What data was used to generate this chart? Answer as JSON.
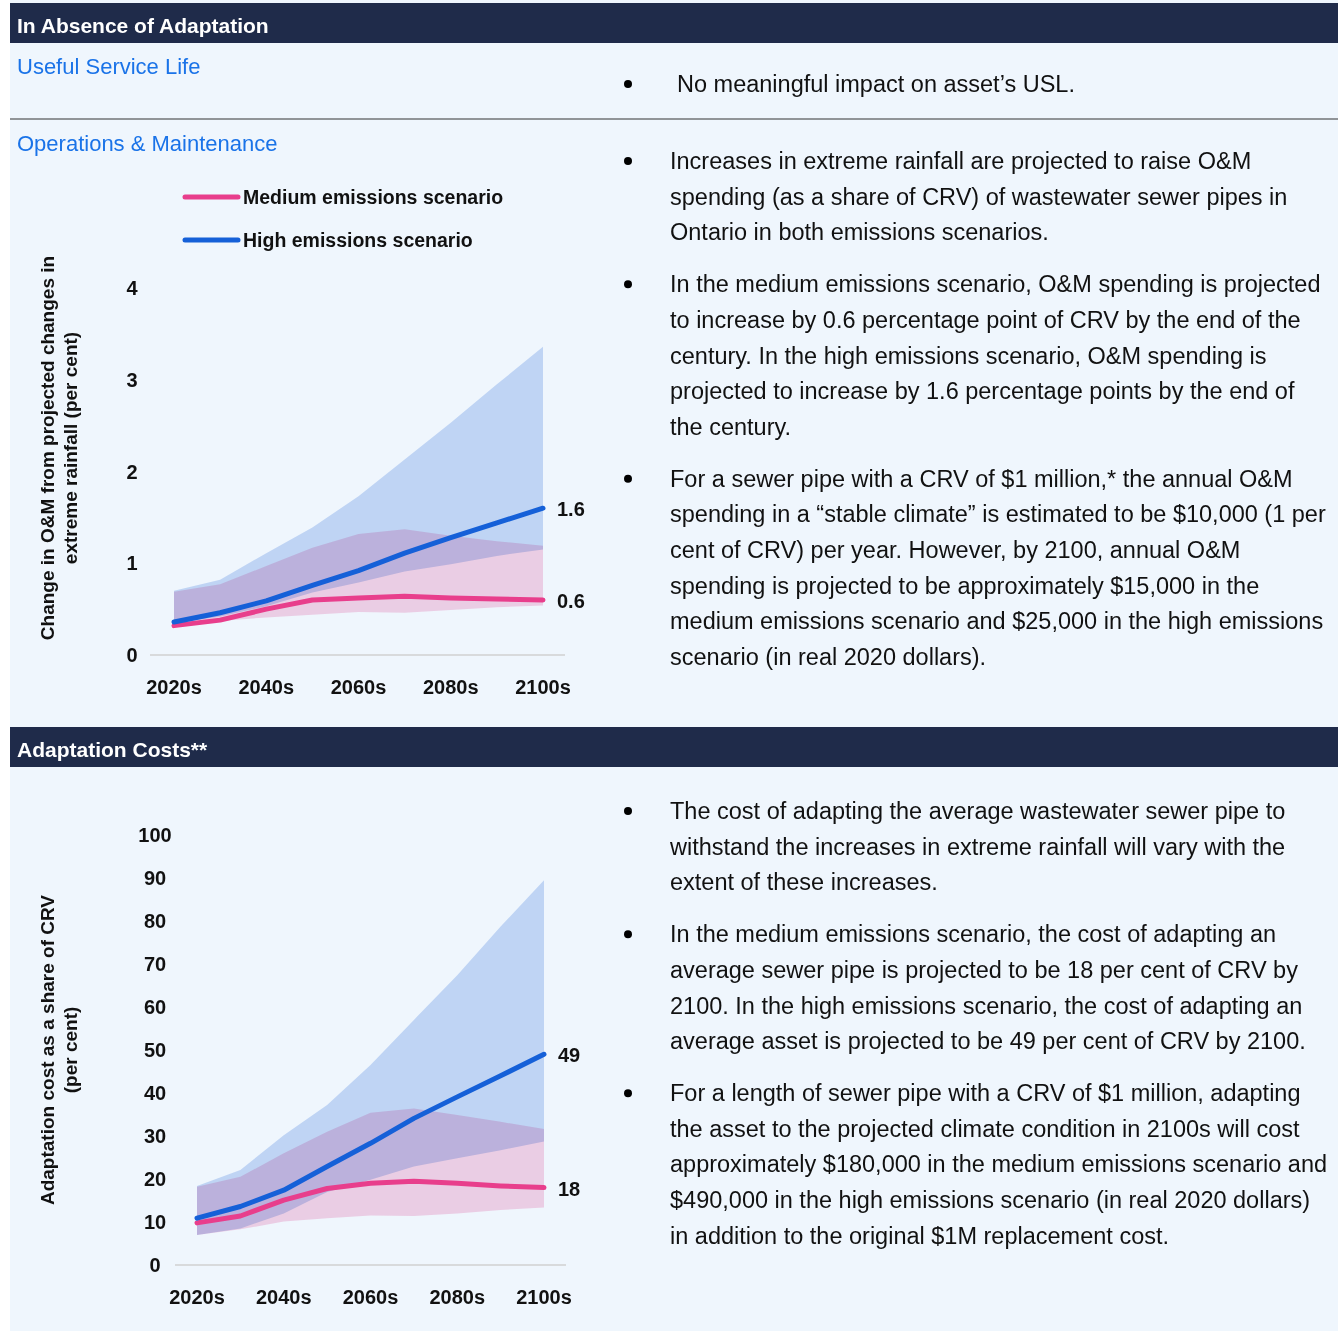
{
  "chart_data": [
    {
      "type": "other",
      "title": "In Absence of Adaptation",
      "subtitle": "Useful Service Life",
      "annotations": [
        "No meaningful impact on asset’s USL."
      ]
    },
    {
      "type": "line",
      "title": "Operations & Maintenance",
      "ylabel": "Change in O&M from projected changes in extreme rainfall (per cent)",
      "categories": [
        "2020s",
        null,
        "2040s",
        null,
        "2060s",
        null,
        "2080s",
        null,
        "2100s"
      ],
      "ylim": [
        0,
        4
      ],
      "yticks": [
        0,
        1,
        2,
        3,
        4
      ],
      "legend": "top left",
      "series": [
        {
          "name": "Medium emissions scenario",
          "color": "#e83e8c",
          "values": [
            0.32,
            0.38,
            0.5,
            0.6,
            0.62,
            0.64,
            0.62,
            0.61,
            0.6
          ],
          "lower": [
            0.3,
            0.37,
            0.41,
            0.44,
            0.47,
            0.46,
            0.49,
            0.52,
            0.54
          ],
          "upper": [
            0.69,
            0.77,
            0.97,
            1.17,
            1.32,
            1.37,
            1.3,
            1.24,
            1.19
          ],
          "value_labels": [
            null,
            null,
            null,
            null,
            null,
            null,
            null,
            null,
            "0.6"
          ]
        },
        {
          "name": "High emissions scenario",
          "color": "#1560d8",
          "values": [
            0.36,
            0.46,
            0.59,
            0.76,
            0.92,
            1.11,
            1.28,
            1.44,
            1.6
          ],
          "lower": [
            0.35,
            0.42,
            0.53,
            0.68,
            0.79,
            0.91,
            0.99,
            1.08,
            1.15
          ],
          "upper": [
            0.7,
            0.82,
            1.11,
            1.39,
            1.73,
            2.13,
            2.53,
            2.95,
            3.36
          ],
          "value_labels": [
            null,
            null,
            null,
            null,
            null,
            null,
            null,
            null,
            "1.6"
          ]
        }
      ]
    },
    {
      "type": "other",
      "annotations": [
        "Increases in extreme rainfall are projected to raise O&M spending (as a share of CRV) of wastewater sewer pipes in Ontario in both emissions scenarios.",
        "In the medium emissions scenario, O&M spending is projected to increase by 0.6 percentage point of CRV by the end of the century. In the high emissions scenario, O&M spending is projected to increase by 1.6 percentage points by the end of the century.",
        "For a sewer pipe with a CRV of $1 million,* the annual O&M spending in a “stable climate” is estimated to be $10,000 (1 per cent of CRV) per year. However, by 2100, annual O&M spending is projected to be approximately $15,000 in the medium emissions scenario and $25,000 in the high emissions scenario (in real 2020 dollars)."
      ]
    },
    {
      "type": "line",
      "title": "Adaptation Costs**",
      "ylabel": "Adaptation cost as a share of CRV (per cent)",
      "categories": [
        "2020s",
        null,
        "2040s",
        null,
        "2060s",
        null,
        "2080s",
        null,
        "2100s"
      ],
      "ylim": [
        0,
        100
      ],
      "yticks": [
        0,
        10,
        20,
        30,
        40,
        50,
        60,
        70,
        80,
        90,
        100
      ],
      "series": [
        {
          "color": "#e83e8c",
          "values": [
            9.8,
            11.4,
            15.1,
            17.8,
            19,
            19.5,
            19,
            18.4,
            18
          ],
          "lower": [
            7,
            8.3,
            10.1,
            10.9,
            11.5,
            11.4,
            12,
            12.8,
            13.4
          ],
          "upper": [
            18.2,
            20.5,
            26,
            31,
            35.4,
            36.4,
            34.9,
            33.3,
            31.6
          ],
          "value_labels": [
            null,
            null,
            null,
            null,
            null,
            null,
            null,
            null,
            "18"
          ]
        },
        {
          "color": "#1560d8",
          "values": [
            10.9,
            13.6,
            17.4,
            22.9,
            28.3,
            34.1,
            39.1,
            44,
            49
          ],
          "lower": [
            7,
            8.5,
            12,
            17,
            19.8,
            22.9,
            24.8,
            26.7,
            28.7
          ],
          "upper": [
            18.4,
            22.1,
            30.2,
            37.2,
            46.5,
            57,
            67.4,
            78.7,
            89.5
          ],
          "value_labels": [
            null,
            null,
            null,
            null,
            null,
            null,
            null,
            null,
            "49"
          ]
        }
      ]
    },
    {
      "type": "other",
      "annotations": [
        "The cost of adapting the average wastewater sewer pipe to withstand the increases in extreme rainfall will vary with the extent of these increases.",
        "In the medium emissions scenario, the cost of adapting an average sewer pipe is projected to be 18 per cent of CRV by 2100. In the high emissions scenario, the cost of adapting an average asset is projected to be 49 per cent of CRV by 2100.",
        "For a length of sewer pipe with a CRV of $1 million, adapting the asset to the projected climate condition in 2100s will cost approximately $180,000 in the medium emissions scenario and $490,000 in the high emissions scenario (in real 2020 dollars) in addition to the original $1M replacement cost."
      ]
    }
  ]
}
